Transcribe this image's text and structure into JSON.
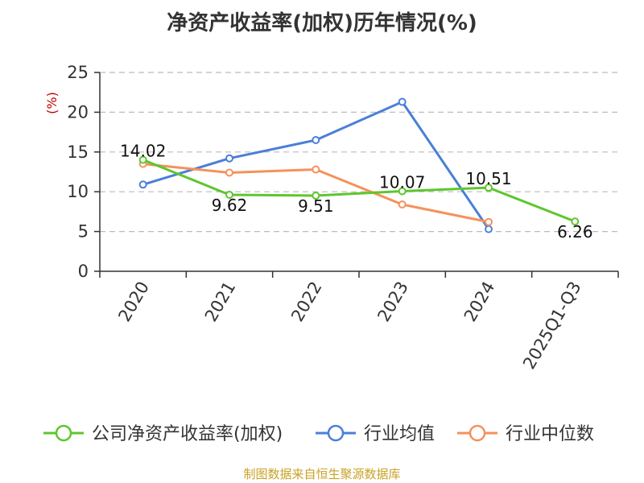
{
  "chart_data": {
    "type": "line",
    "title": "净资产收益率(加权)历年情况(%)",
    "ylabel": "(%)",
    "ylim": [
      0,
      25
    ],
    "yticks": [
      "0",
      "5",
      "10",
      "15",
      "20",
      "25"
    ],
    "categories": [
      "2020",
      "2021",
      "2022",
      "2023",
      "2024",
      "2025Q1-Q3"
    ],
    "grid": true,
    "legend_position": "bottom",
    "series": [
      {
        "name": "公司净资产收益率(加权)",
        "color": "#5ec62e",
        "values": [
          14.02,
          9.62,
          9.51,
          10.07,
          10.51,
          6.26
        ],
        "labels": [
          "14.02",
          "9.62",
          "9.51",
          "10.07",
          "10.51",
          "6.26"
        ]
      },
      {
        "name": "行业均值",
        "color": "#4a7fd8",
        "values": [
          10.9,
          14.2,
          16.5,
          21.3,
          5.3,
          null
        ]
      },
      {
        "name": "行业中位数",
        "color": "#f5915c",
        "values": [
          13.5,
          12.4,
          12.8,
          8.4,
          6.2,
          null
        ]
      }
    ]
  },
  "footer": {
    "source": "制图数据来自恒生聚源数据库"
  }
}
